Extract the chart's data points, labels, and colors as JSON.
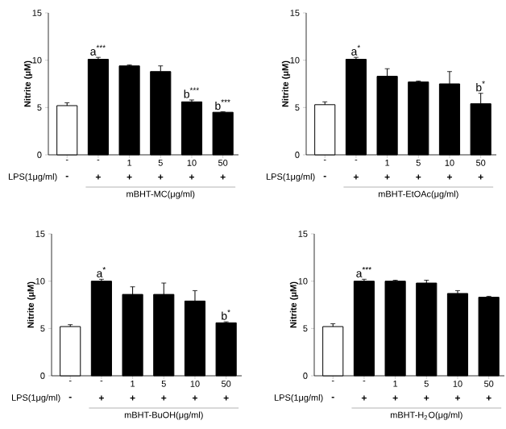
{
  "chart_data": [
    {
      "type": "bar",
      "categories": [
        "-",
        "-",
        "1",
        "5",
        "10",
        "50"
      ],
      "xlabel": "mBHT-MC(μg/ml)",
      "ylabel": "Nitrite (μM)",
      "ylim": [
        0,
        15
      ],
      "yticks": [
        0,
        5,
        10,
        15
      ],
      "values": [
        5.2,
        10.1,
        9.4,
        8.8,
        5.6,
        4.5
      ],
      "errors": [
        0.3,
        0.2,
        0.1,
        0.6,
        0.2,
        0.05
      ],
      "colors": [
        "#ffffff",
        "#000000",
        "#000000",
        "#000000",
        "#000000",
        "#000000"
      ],
      "value_labels": [
        null,
        "a$^{***}$",
        null,
        null,
        "b$^{***}$",
        "b$^{***}$"
      ],
      "annotations": [
        "LPS(1μg/ml)",
        "-",
        "+",
        "+",
        "+",
        "+",
        "+"
      ]
    },
    {
      "type": "bar",
      "categories": [
        "-",
        "-",
        "1",
        "5",
        "10",
        "50"
      ],
      "xlabel": "mBHT-EtOAc(μg/ml)",
      "ylabel": "Nitrite (μM)",
      "ylim": [
        0,
        15
      ],
      "yticks": [
        0,
        5,
        10,
        15
      ],
      "values": [
        5.3,
        10.1,
        8.3,
        7.7,
        7.5,
        5.4
      ],
      "errors": [
        0.3,
        0.2,
        0.8,
        0.1,
        1.3,
        1.1
      ],
      "colors": [
        "#ffffff",
        "#000000",
        "#000000",
        "#000000",
        "#000000",
        "#000000"
      ],
      "value_labels": [
        null,
        "a$^{*}$",
        null,
        null,
        null,
        "b$^{*}$"
      ],
      "annotations": [
        "LPS(1μg/ml)",
        "-",
        "+",
        "+",
        "+",
        "+",
        "+"
      ]
    },
    {
      "type": "bar",
      "categories": [
        "-",
        "-",
        "1",
        "5",
        "10",
        "50"
      ],
      "xlabel": "mBHT-BuOH(μg/ml)",
      "ylabel": "Nitrite (μM)",
      "ylim": [
        0,
        15
      ],
      "yticks": [
        0,
        5,
        10,
        15
      ],
      "values": [
        5.2,
        10.0,
        8.6,
        8.6,
        7.9,
        5.6
      ],
      "errors": [
        0.2,
        0.2,
        0.8,
        1.2,
        1.1,
        0.1
      ],
      "colors": [
        "#ffffff",
        "#000000",
        "#000000",
        "#000000",
        "#000000",
        "#000000"
      ],
      "value_labels": [
        null,
        "a$^{*}$",
        null,
        null,
        null,
        "b$^{*}$"
      ],
      "annotations": [
        "LPS(1μg/ml)",
        "-",
        "+",
        "+",
        "+",
        "+",
        "+"
      ]
    },
    {
      "type": "bar",
      "categories": [
        "-",
        "-",
        "1",
        "5",
        "10",
        "50"
      ],
      "xlabel": "mBHT-H$_{2}$O(μg/ml)",
      "ylabel": "Nitrite (μM)",
      "ylim": [
        0,
        15
      ],
      "yticks": [
        0,
        5,
        10,
        15
      ],
      "values": [
        5.2,
        10.0,
        10.0,
        9.8,
        8.7,
        8.3
      ],
      "errors": [
        0.3,
        0.2,
        0.1,
        0.3,
        0.3,
        0.1
      ],
      "colors": [
        "#ffffff",
        "#000000",
        "#000000",
        "#000000",
        "#000000",
        "#000000"
      ],
      "value_labels": [
        null,
        "a$^{***}$",
        null,
        null,
        null,
        null
      ],
      "annotations": [
        "LPS(1μg/ml)",
        "-",
        "+",
        "+",
        "+",
        "+",
        "+"
      ]
    }
  ]
}
